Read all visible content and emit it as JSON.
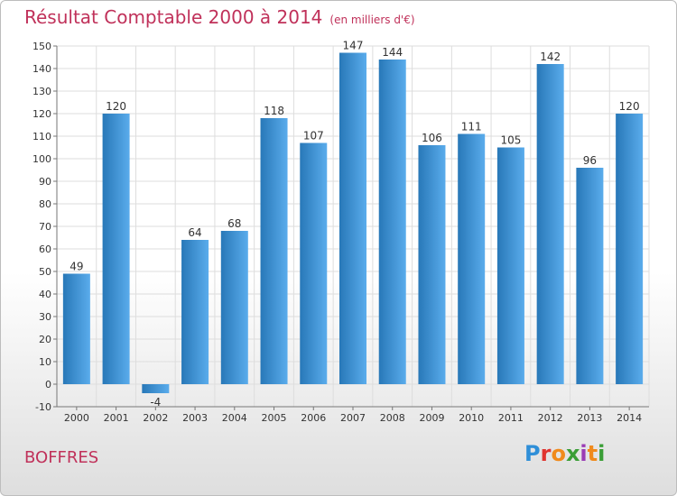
{
  "header": {
    "title": "Résultat Comptable 2000 à 2014",
    "subtitle": "(en milliers d'€)"
  },
  "footer": {
    "city": "BOFFRES",
    "logo_text": "Proxiti"
  },
  "colors": {
    "title": "#c0315a",
    "bar_light": "#5aacec",
    "bar_dark": "#2878b8",
    "grid": "#dddddd",
    "axis": "#777777"
  },
  "chart_data": {
    "type": "bar",
    "title": "Résultat Comptable 2000 à 2014",
    "subtitle": "(en milliers d'€)",
    "xlabel": "",
    "ylabel": "",
    "categories": [
      "2000",
      "2001",
      "2002",
      "2003",
      "2004",
      "2005",
      "2006",
      "2007",
      "2008",
      "2009",
      "2010",
      "2011",
      "2012",
      "2013",
      "2014"
    ],
    "values": [
      49,
      120,
      -4,
      64,
      68,
      118,
      107,
      147,
      144,
      106,
      111,
      105,
      142,
      96,
      120
    ],
    "ylim": [
      -10,
      150
    ],
    "yticks": [
      -10,
      0,
      10,
      20,
      30,
      40,
      50,
      60,
      70,
      80,
      90,
      100,
      110,
      120,
      130,
      140,
      150
    ],
    "grid": true,
    "legend": "none"
  }
}
